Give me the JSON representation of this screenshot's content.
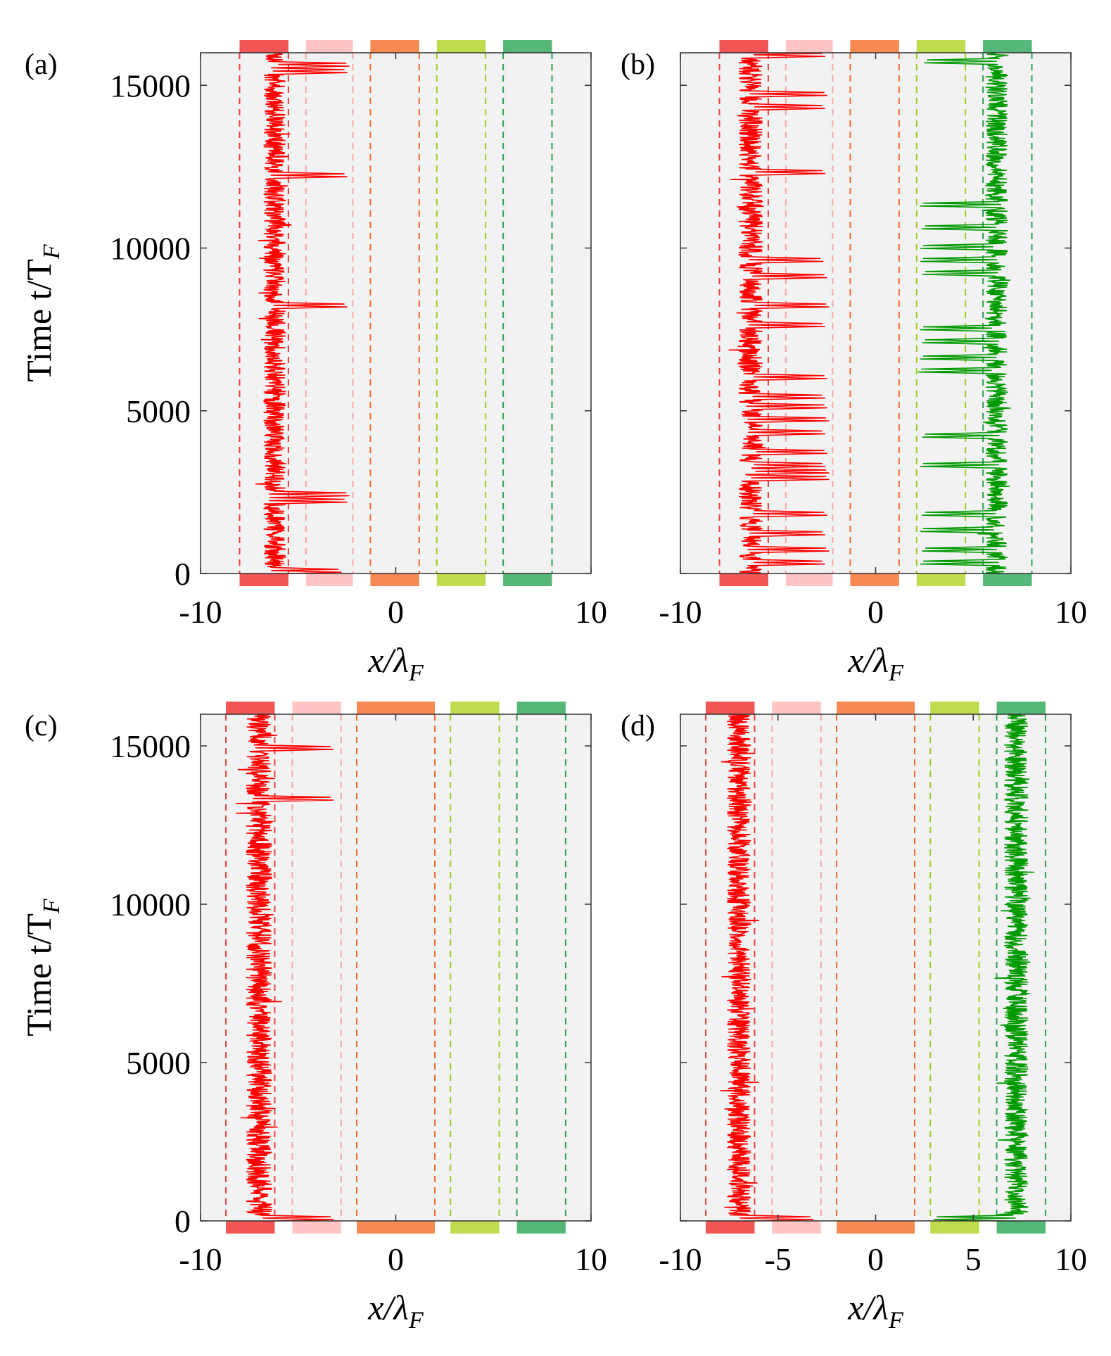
{
  "colors": {
    "panel_bg": "#f2f2f2",
    "red_trace": "#ff0000",
    "green_trace": "#009900",
    "well_colors": [
      "#f25555",
      "#ffc4c4",
      "#f68a52",
      "#bedc4e",
      "#55b778"
    ],
    "well_line_colors": [
      "#e8403e",
      "#f7a7a7",
      "#f06a2c",
      "#9ccc25",
      "#2e9f53"
    ]
  },
  "chart_data": [
    {
      "type": "line",
      "panel": "(a)",
      "xlabel": "x/λ_F",
      "xlabel_main": "x/λ",
      "xlabel_sub": "F",
      "ylabel": "Time t/T_F",
      "ylabel_main": "Time t/T",
      "ylabel_sub": "F",
      "xlim": [
        -10,
        10
      ],
      "ylim": [
        0,
        16000
      ],
      "xticks": [
        -10,
        0,
        10
      ],
      "xtick_labels": [
        "-10",
        "0",
        "10"
      ],
      "yticks": [
        0,
        5000,
        10000,
        15000
      ],
      "ytick_labels": [
        "0",
        "5000",
        "10000",
        "15000"
      ],
      "wells": [
        [
          -8.0,
          -5.5
        ],
        [
          -4.6,
          -2.2
        ],
        [
          -1.3,
          1.2
        ],
        [
          2.1,
          4.6
        ],
        [
          5.5,
          8.0
        ]
      ],
      "series": [
        {
          "color": "red",
          "dwell": [
            -6.2,
            0.55
          ],
          "excursions": [
            [
              50,
              -2.8
            ],
            [
              2200,
              -2.5
            ],
            [
              2400,
              -2.4
            ],
            [
              8200,
              -2.5
            ],
            [
              12200,
              -2.5
            ],
            [
              15400,
              -2.5
            ],
            [
              15600,
              -2.4
            ]
          ]
        }
      ]
    },
    {
      "type": "line",
      "panel": "(b)",
      "xlabel": "x/λ_F",
      "xlabel_main": "x/λ",
      "xlabel_sub": "F",
      "ylabel": "",
      "xlim": [
        -10,
        10
      ],
      "ylim": [
        0,
        16000
      ],
      "xticks": [
        -10,
        0,
        10
      ],
      "xtick_labels": [
        "-10",
        "0",
        "10"
      ],
      "yticks": [
        0,
        5000,
        10000,
        15000
      ],
      "ytick_labels": [
        "",
        "",
        "",
        ""
      ],
      "wells": [
        [
          -8.0,
          -5.5
        ],
        [
          -4.6,
          -2.2
        ],
        [
          -1.3,
          1.2
        ],
        [
          2.1,
          4.6
        ],
        [
          5.5,
          8.0
        ]
      ],
      "series": [
        {
          "color": "red",
          "dwell": [
            -6.4,
            0.6
          ],
          "excursions": [
            [
              300,
              -2.6
            ],
            [
              700,
              -2.4
            ],
            [
              1200,
              -2.6
            ],
            [
              1800,
              -2.5
            ],
            [
              2900,
              -2.4
            ],
            [
              3100,
              -2.4
            ],
            [
              3300,
              -2.6
            ],
            [
              3700,
              -2.5
            ],
            [
              4300,
              -2.6
            ],
            [
              4700,
              -2.4
            ],
            [
              5100,
              -2.5
            ],
            [
              5400,
              -2.6
            ],
            [
              6000,
              -2.5
            ],
            [
              7600,
              -2.6
            ],
            [
              8200,
              -2.4
            ],
            [
              9100,
              -2.5
            ],
            [
              9600,
              -2.7
            ],
            [
              12300,
              -2.6
            ],
            [
              14300,
              -2.6
            ],
            [
              14700,
              -2.5
            ],
            [
              15900,
              -2.6
            ]
          ]
        },
        {
          "color": "green",
          "dwell": [
            6.2,
            0.55
          ],
          "excursions": [
            [
              300,
              2.3
            ],
            [
              700,
              2.4
            ],
            [
              1300,
              2.3
            ],
            [
              1800,
              2.4
            ],
            [
              3300,
              2.3
            ],
            [
              4200,
              2.4
            ],
            [
              6200,
              2.2
            ],
            [
              6600,
              2.3
            ],
            [
              7100,
              2.4
            ],
            [
              7500,
              2.3
            ],
            [
              9200,
              2.4
            ],
            [
              9600,
              2.3
            ],
            [
              10000,
              2.3
            ],
            [
              10600,
              2.4
            ],
            [
              11300,
              2.3
            ],
            [
              15700,
              2.5
            ]
          ]
        }
      ]
    },
    {
      "type": "line",
      "panel": "(c)",
      "xlabel": "x/λ_F",
      "xlabel_main": "x/λ",
      "xlabel_sub": "F",
      "ylabel": "Time t/T_F",
      "ylabel_main": "Time t/T",
      "ylabel_sub": "F",
      "xlim": [
        -10,
        10
      ],
      "ylim": [
        0,
        16000
      ],
      "xticks": [
        -10,
        0,
        10
      ],
      "xtick_labels": [
        "-10",
        "0",
        "10"
      ],
      "yticks": [
        0,
        5000,
        10000,
        15000
      ],
      "ytick_labels": [
        "0",
        "5000",
        "10000",
        "15000"
      ],
      "wells": [
        [
          -8.7,
          -6.2
        ],
        [
          -5.3,
          -2.8
        ],
        [
          -2.0,
          2.0
        ],
        [
          2.8,
          5.3
        ],
        [
          6.2,
          8.7
        ]
      ],
      "series": [
        {
          "color": "red",
          "dwell": [
            -7.0,
            0.65
          ],
          "excursions": [
            [
              50,
              -3.2
            ],
            [
              13300,
              -3.2
            ],
            [
              14900,
              -3.2
            ]
          ]
        }
      ]
    },
    {
      "type": "line",
      "panel": "(d)",
      "xlabel": "x/λ_F",
      "xlabel_main": "x/λ",
      "xlabel_sub": "F",
      "ylabel": "",
      "xlim": [
        -10,
        10
      ],
      "ylim": [
        0,
        16000
      ],
      "xticks": [
        -10,
        -5,
        0,
        5,
        10
      ],
      "xtick_labels": [
        "-10",
        "-5",
        "0",
        "5",
        "10"
      ],
      "yticks": [
        0,
        5000,
        10000,
        15000
      ],
      "ytick_labels": [
        "",
        "",
        "",
        ""
      ],
      "wells": [
        [
          -8.7,
          -6.2
        ],
        [
          -5.3,
          -2.8
        ],
        [
          -2.0,
          2.0
        ],
        [
          2.8,
          5.3
        ],
        [
          6.2,
          8.7
        ]
      ],
      "series": [
        {
          "color": "red",
          "dwell": [
            -7.0,
            0.6
          ],
          "excursions": [
            [
              50,
              -3.2
            ]
          ]
        },
        {
          "color": "green",
          "dwell": [
            7.2,
            0.6
          ],
          "excursions": [
            [
              50,
              3.0
            ]
          ]
        }
      ]
    }
  ]
}
